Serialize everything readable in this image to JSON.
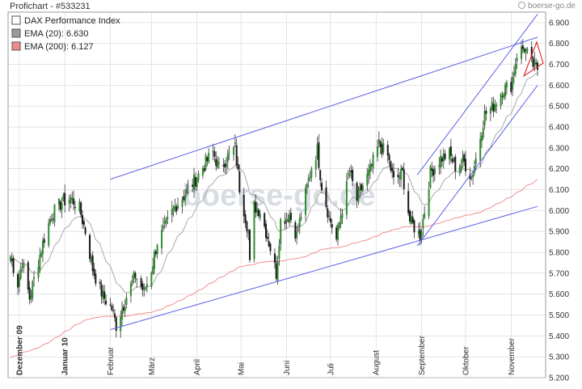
{
  "header": {
    "title": "Profichart - #533231",
    "source": "boerse-go.de"
  },
  "watermark": "boerse-go.de",
  "legend": [
    {
      "label": "DAX Performance Index",
      "swatch": "#ffffff"
    },
    {
      "label": "EMA (20): 6.630",
      "swatch": "#9a9a9a"
    },
    {
      "label": "EMA (200): 6.127",
      "swatch": "#f08a8a"
    }
  ],
  "colors": {
    "up": "#2e8b2e",
    "down": "#1a1a1a",
    "wick": "#333333",
    "ema20": "#a8a8a8",
    "ema200": "#f29090",
    "trendline": "#5b62e6",
    "triangle": "#e23030",
    "grid": "#d4d4d4"
  },
  "chart_data": {
    "type": "candlestick",
    "x": {
      "range": [
        "2009-11-25",
        "2010-11-19"
      ],
      "ticks": [
        {
          "label": "Dezember 09",
          "date": "2009-12-01"
        },
        {
          "label": "Januar 10",
          "date": "2010-01-01"
        },
        {
          "label": "Februar",
          "date": "2010-02-01"
        },
        {
          "label": "März",
          "date": "2010-03-01"
        },
        {
          "label": "April",
          "date": "2010-04-01"
        },
        {
          "label": "Mai",
          "date": "2010-05-01"
        },
        {
          "label": "Juni",
          "date": "2010-06-01"
        },
        {
          "label": "Juli",
          "date": "2010-07-01"
        },
        {
          "label": "August",
          "date": "2010-08-01"
        },
        {
          "label": "September",
          "date": "2010-09-01"
        },
        {
          "label": "Oktober",
          "date": "2010-10-01"
        },
        {
          "label": "November",
          "date": "2010-11-01"
        }
      ]
    },
    "y": {
      "range": [
        5200,
        6950
      ],
      "ticks": [
        5200,
        5300,
        5400,
        5500,
        5600,
        5700,
        5800,
        5900,
        6000,
        6100,
        6200,
        6300,
        6400,
        6500,
        6600,
        6700,
        6800,
        6900
      ],
      "tick_labels": [
        "5.200",
        "5.300",
        "5.400",
        "5.500",
        "5.600",
        "5.700",
        "5.800",
        "5.900",
        "6.000",
        "6.100",
        "6.200",
        "6.300",
        "6.400",
        "6.500",
        "6.600",
        "6.700",
        "6.800",
        "6.900"
      ]
    },
    "grid": true,
    "legend_position": "top-left",
    "price_path": [
      [
        "2009-11-25",
        5780
      ],
      [
        "2009-11-30",
        5650
      ],
      [
        "2009-12-03",
        5760
      ],
      [
        "2009-12-08",
        5580
      ],
      [
        "2009-12-14",
        5760
      ],
      [
        "2009-12-18",
        5870
      ],
      [
        "2009-12-23",
        5980
      ],
      [
        "2009-12-30",
        6040
      ],
      [
        "2010-01-05",
        6060
      ],
      [
        "2010-01-11",
        6010
      ],
      [
        "2010-01-15",
        5900
      ],
      [
        "2010-01-20",
        5720
      ],
      [
        "2010-01-25",
        5620
      ],
      [
        "2010-01-28",
        5580
      ],
      [
        "2010-02-02",
        5530
      ],
      [
        "2010-02-05",
        5450
      ],
      [
        "2010-02-09",
        5530
      ],
      [
        "2010-02-12",
        5590
      ],
      [
        "2010-02-18",
        5690
      ],
      [
        "2010-02-24",
        5610
      ],
      [
        "2010-03-01",
        5720
      ],
      [
        "2010-03-05",
        5850
      ],
      [
        "2010-03-11",
        5930
      ],
      [
        "2010-03-17",
        6020
      ],
      [
        "2010-03-24",
        6080
      ],
      [
        "2010-03-31",
        6150
      ],
      [
        "2010-04-07",
        6230
      ],
      [
        "2010-04-12",
        6280
      ],
      [
        "2010-04-16",
        6200
      ],
      [
        "2010-04-22",
        6260
      ],
      [
        "2010-04-27",
        6300
      ],
      [
        "2010-04-30",
        6110
      ],
      [
        "2010-05-06",
        5900
      ],
      [
        "2010-05-07",
        5740
      ],
      [
        "2010-05-10",
        6020
      ],
      [
        "2010-05-14",
        6000
      ],
      [
        "2010-05-20",
        5850
      ],
      [
        "2010-05-25",
        5700
      ],
      [
        "2010-05-28",
        5950
      ],
      [
        "2010-06-03",
        5980
      ],
      [
        "2010-06-08",
        5880
      ],
      [
        "2010-06-14",
        6080
      ],
      [
        "2010-06-18",
        6210
      ],
      [
        "2010-06-22",
        6290
      ],
      [
        "2010-06-25",
        6120
      ],
      [
        "2010-06-30",
        5970
      ],
      [
        "2010-07-05",
        5860
      ],
      [
        "2010-07-08",
        5980
      ],
      [
        "2010-07-14",
        6180
      ],
      [
        "2010-07-19",
        6050
      ],
      [
        "2010-07-23",
        6120
      ],
      [
        "2010-07-28",
        6190
      ],
      [
        "2010-08-03",
        6320
      ],
      [
        "2010-08-09",
        6260
      ],
      [
        "2010-08-13",
        6140
      ],
      [
        "2010-08-19",
        6180
      ],
      [
        "2010-08-24",
        5950
      ],
      [
        "2010-08-27",
        5920
      ],
      [
        "2010-08-31",
        5880
      ],
      [
        "2010-09-03",
        6000
      ],
      [
        "2010-09-07",
        6180
      ],
      [
        "2010-09-14",
        6250
      ],
      [
        "2010-09-20",
        6270
      ],
      [
        "2010-09-24",
        6210
      ],
      [
        "2010-09-30",
        6230
      ],
      [
        "2010-10-05",
        6160
      ],
      [
        "2010-10-08",
        6250
      ],
      [
        "2010-10-14",
        6460
      ],
      [
        "2010-10-20",
        6500
      ],
      [
        "2010-10-26",
        6580
      ],
      [
        "2010-11-01",
        6600
      ],
      [
        "2010-11-05",
        6750
      ],
      [
        "2010-11-10",
        6780
      ],
      [
        "2010-11-15",
        6700
      ],
      [
        "2010-11-19",
        6680
      ]
    ],
    "ema20": {
      "last": 6630
    },
    "ema200": {
      "last": 6127
    },
    "trendlines": [
      {
        "from": [
          "2010-02-01",
          6150
        ],
        "to": [
          "2010-11-19",
          6830
        ]
      },
      {
        "from": [
          "2010-02-01",
          5430
        ],
        "to": [
          "2010-11-19",
          6020
        ]
      },
      {
        "from": [
          "2010-08-29",
          6170
        ],
        "to": [
          "2010-11-19",
          6940
        ]
      },
      {
        "from": [
          "2010-08-29",
          5830
        ],
        "to": [
          "2010-11-19",
          6600
        ]
      }
    ]
  }
}
